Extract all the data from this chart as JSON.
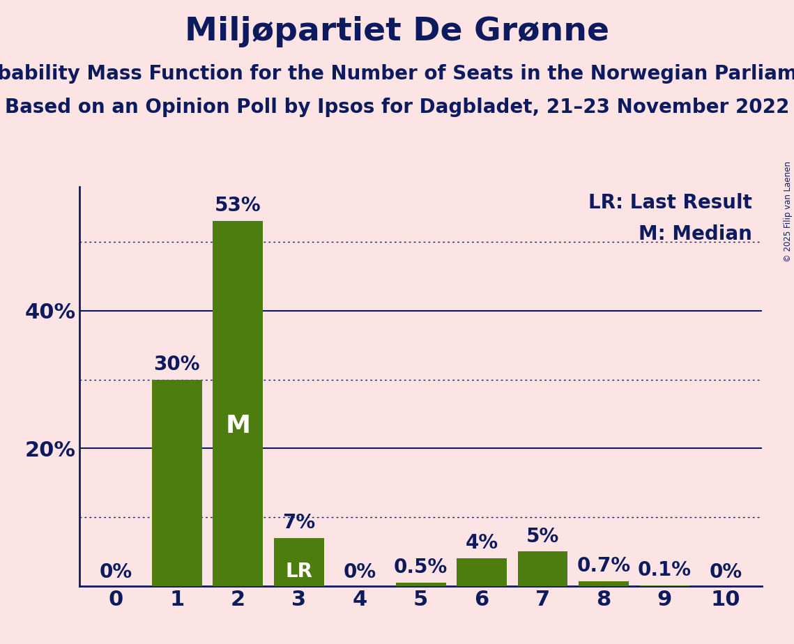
{
  "title": "Miljøpartiet De Grønne",
  "subtitle1": "Probability Mass Function for the Number of Seats in the Norwegian Parliament",
  "subtitle2": "Based on an Opinion Poll by Ipsos for Dagbladet, 21–23 November 2022",
  "copyright": "© 2025 Filip van Laenen",
  "categories": [
    0,
    1,
    2,
    3,
    4,
    5,
    6,
    7,
    8,
    9,
    10
  ],
  "values": [
    0.0,
    30.0,
    53.0,
    7.0,
    0.0,
    0.5,
    4.0,
    5.0,
    0.7,
    0.1,
    0.0
  ],
  "bar_color": "#4d7c0f",
  "background_color": "#fce4e4",
  "text_color": "#0d1b5e",
  "bar_labels": [
    "0%",
    "30%",
    "53%",
    "7%",
    "0%",
    "0.5%",
    "4%",
    "5%",
    "0.7%",
    "0.1%",
    "0%"
  ],
  "median_seat": 2,
  "last_result_seat": 3,
  "legend_lr": "LR: Last Result",
  "legend_m": "M: Median",
  "solid_yticks": [
    20,
    40
  ],
  "dotted_yticks": [
    10,
    30,
    50
  ],
  "ymax": 58,
  "title_fontsize": 34,
  "subtitle_fontsize": 20,
  "label_fontsize": 20,
  "tick_fontsize": 22,
  "legend_fontsize": 20
}
